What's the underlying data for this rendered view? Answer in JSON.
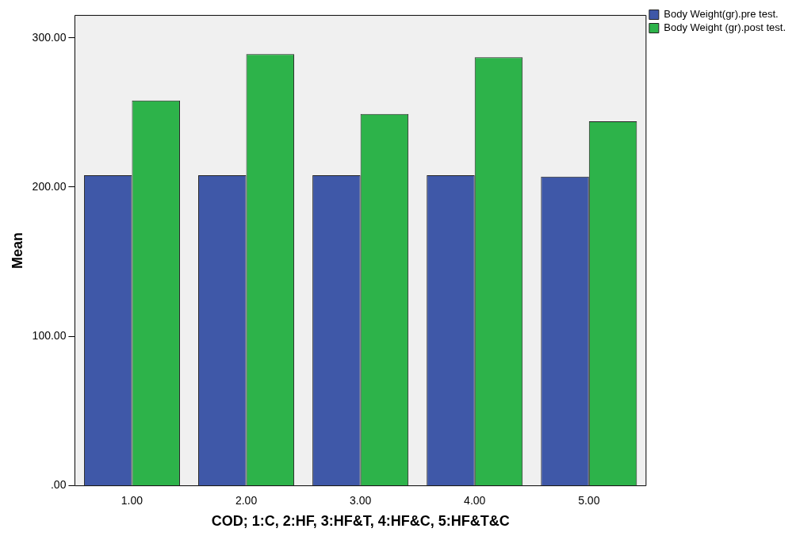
{
  "chart_data": {
    "type": "bar",
    "xlabel": "COD; 1:C, 2:HF, 3:HF&T, 4:HF&C, 5:HF&T&C",
    "ylabel": "Mean",
    "categories": [
      "1.00",
      "2.00",
      "3.00",
      "4.00",
      "5.00"
    ],
    "series": [
      {
        "name": "Body Weight(gr).pre test.",
        "color": "#3f58a8",
        "values": [
          208,
          208,
          208,
          208,
          207
        ]
      },
      {
        "name": "Body Weight (gr).post test.",
        "color": "#2db34a",
        "values": [
          258,
          289,
          249,
          287,
          244
        ]
      }
    ],
    "ylim": [
      0,
      315
    ],
    "yticks": [
      {
        "value": 0,
        "label": ".00"
      },
      {
        "value": 100,
        "label": "100.00"
      },
      {
        "value": 200,
        "label": "200.00"
      },
      {
        "value": 300,
        "label": "300.00"
      }
    ],
    "grid": false,
    "legend": "top right"
  }
}
